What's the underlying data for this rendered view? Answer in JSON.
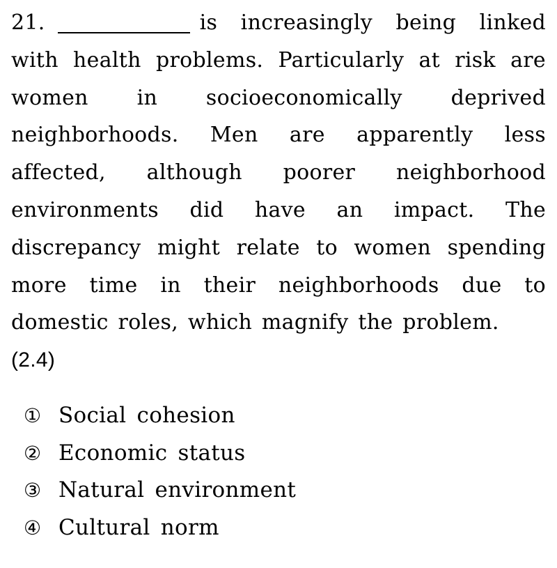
{
  "question": {
    "number": "21.",
    "stem_before_blank": "",
    "stem_after_blank": "is increasingly being linked with health problems. Particularly at risk are women in socioeconomically deprived neighborhoods. Men are apparently less affected, although poorer neighborhood environments did have an impact. The discrepancy might relate to women spending more time in their neighborhoods due to domestic roles, which magnify the problem.",
    "points": "(2.4)"
  },
  "options": [
    {
      "marker": "①",
      "text": "Social cohesion"
    },
    {
      "marker": "②",
      "text": "Economic status"
    },
    {
      "marker": "③",
      "text": "Natural environment"
    },
    {
      "marker": "④",
      "text": "Cultural norm"
    }
  ]
}
